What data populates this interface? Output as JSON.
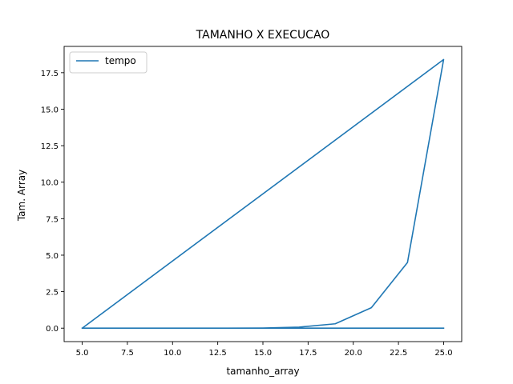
{
  "chart_data": {
    "type": "line",
    "title": "TAMANHO X EXECUCAO",
    "xlabel": "tamanho_array",
    "ylabel": "Tam. Array",
    "xlim": [
      4.0,
      26.0
    ],
    "ylim": [
      -0.92,
      19.3
    ],
    "xticks": [
      5.0,
      7.5,
      10.0,
      12.5,
      15.0,
      17.5,
      20.0,
      22.5,
      25.0
    ],
    "xtick_labels": [
      "5.0",
      "7.5",
      "10.0",
      "12.5",
      "15.0",
      "17.5",
      "20.0",
      "22.5",
      "25.0"
    ],
    "yticks": [
      0.0,
      2.5,
      5.0,
      7.5,
      10.0,
      12.5,
      15.0,
      17.5
    ],
    "ytick_labels": [
      "0.0",
      "2.5",
      "5.0",
      "7.5",
      "10.0",
      "12.5",
      "15.0",
      "17.5"
    ],
    "grid": false,
    "legend": "upper-left",
    "series": [
      {
        "name": "tempo",
        "color": "#1f77b4",
        "x": [
          5,
          7,
          9,
          11,
          13,
          15,
          17,
          19,
          21,
          23,
          25,
          5,
          7,
          9,
          11,
          13,
          15,
          17,
          19,
          21,
          23,
          25
        ],
        "y": [
          0.0,
          0.0,
          0.0,
          0.0,
          0.0,
          0.01,
          0.07,
          0.3,
          1.4,
          4.5,
          18.4,
          0.0,
          0.0,
          0.0,
          0.0,
          0.0,
          0.0,
          0.0,
          0.0,
          0.0,
          0.0,
          0.0
        ]
      }
    ]
  }
}
